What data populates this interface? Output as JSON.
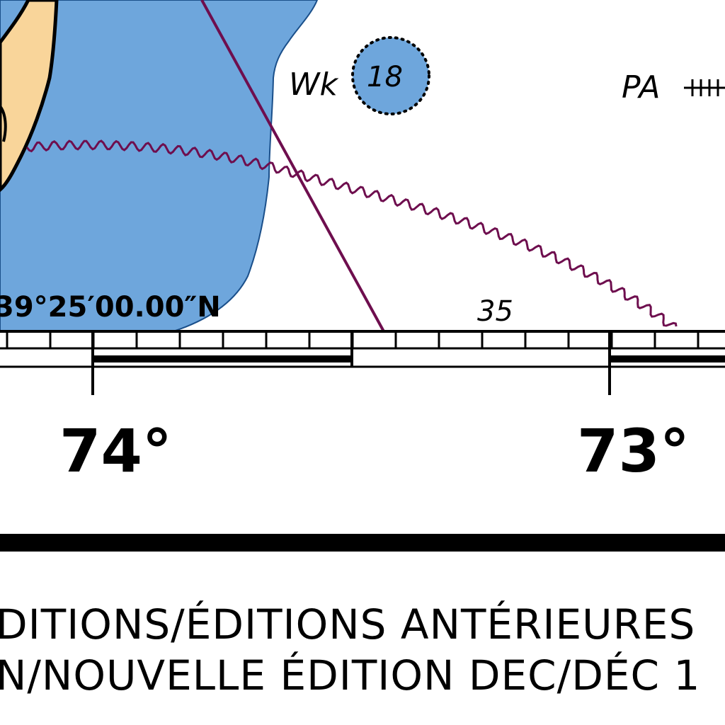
{
  "map": {
    "colors": {
      "water": "#6ea6dc",
      "land": "#f9d59a",
      "route_line": "#6e0e4e",
      "ink": "#000000",
      "paper": "#ffffff"
    },
    "labels": {
      "wreck": "Wk",
      "wreck_depth": "18",
      "pa_mark": "PA",
      "latitude": "39°25′00.00″N",
      "sounding": "35",
      "lon_left": "74°",
      "lon_right": "73°"
    },
    "icons": [
      "wreck-symbol",
      "position-approximate-mark"
    ]
  },
  "footer": {
    "line1": "DITIONS/ÉDITIONS ANTÉRIEURES",
    "line2": "N/NOUVELLE ÉDITION DEC/DÉC 1"
  }
}
